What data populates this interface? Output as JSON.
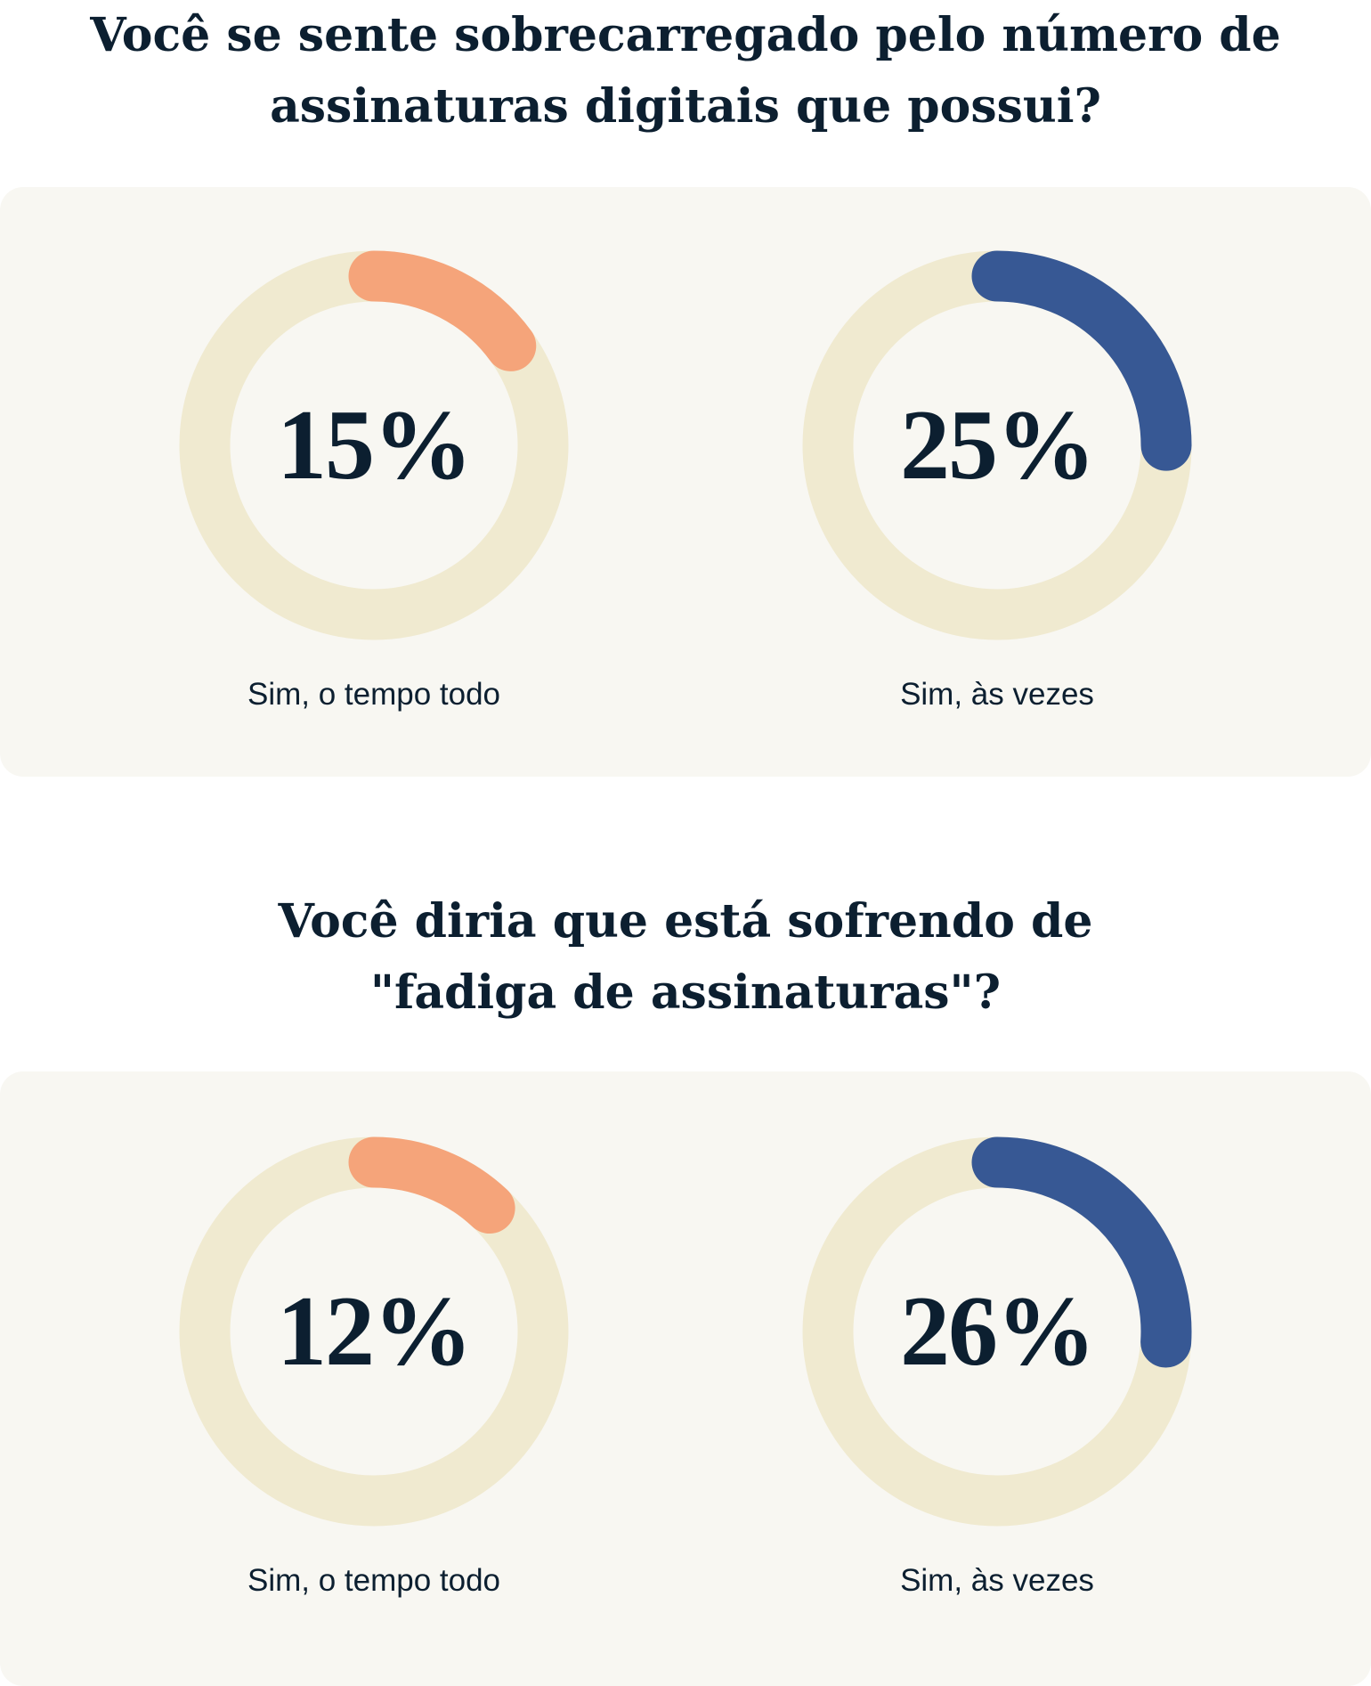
{
  "colors": {
    "background": "#f8f7f2",
    "track": "#f0ead0",
    "orange": "#f5a47a",
    "blue": "#375894",
    "text": "#0c1f30"
  },
  "chart_data": [
    {
      "type": "donut",
      "title": "Você se sente sobrecarregado pelo número de assinaturas digitais que possui?",
      "title_lines": [
        "Você se sente sobrecarregado pelo número de",
        "assinaturas digitais que possui?"
      ],
      "items": [
        {
          "label": "Sim, o tempo todo",
          "value": 15,
          "display": "15%",
          "color": "#f5a47a"
        },
        {
          "label": "Sim, às vezes",
          "value": 25,
          "display": "25%",
          "color": "#375894"
        }
      ]
    },
    {
      "type": "donut",
      "title": "Você diria que está sofrendo de \"fadiga de assinaturas\"?",
      "title_lines": [
        "Você diria que está sofrendo de",
        "\"fadiga de assinaturas\"?"
      ],
      "items": [
        {
          "label": "Sim, o tempo todo",
          "value": 12,
          "display": "12%",
          "color": "#f5a47a"
        },
        {
          "label": "Sim, às vezes",
          "value": 26,
          "display": "26%",
          "color": "#375894"
        }
      ]
    }
  ]
}
